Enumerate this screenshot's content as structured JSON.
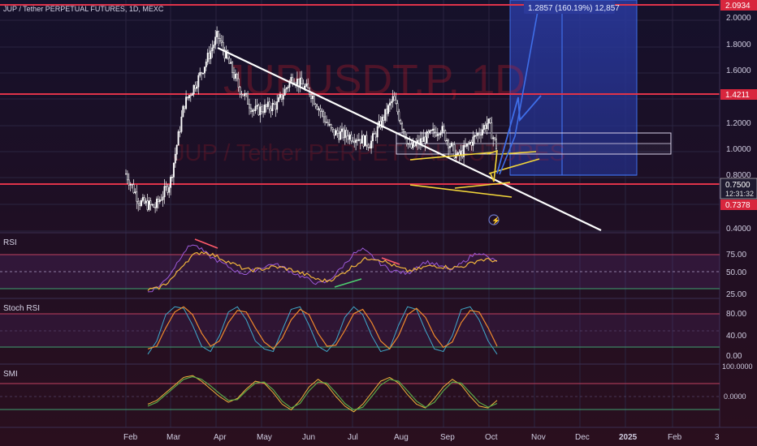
{
  "header": {
    "symbol_title": "JUP / Tether PERPETUAL FUTURES, 1D, MEXC",
    "watermark_ticker": "JUPUSDT.P, 1D",
    "watermark_sub": "JUP / Tether PERPETUAL FUTURES"
  },
  "measure_label": "1.2857 (160.19%) 12,857",
  "price_axis": {
    "ticks": [
      "2.0000",
      "1.8000",
      "1.6000",
      "1.2000",
      "1.0000",
      "0.8000",
      "0.4000"
    ],
    "badges": {
      "top_line": "2.0934",
      "mid_line": "1.4211",
      "current_price": "0.7500",
      "countdown": "12:31:32",
      "support_line": "0.7378"
    }
  },
  "indicators": {
    "rsi": {
      "label": "RSI",
      "ticks": [
        "75.00",
        "50.00",
        "25.00"
      ]
    },
    "stoch_rsi": {
      "label": "Stoch RSI",
      "ticks": [
        "80.00",
        "40.00",
        "0.00"
      ]
    },
    "smi": {
      "label": "SMI",
      "ticks": [
        "100.0000",
        "0.0000"
      ]
    }
  },
  "time_axis": [
    "Feb",
    "Mar",
    "Apr",
    "May",
    "Jun",
    "Jul",
    "Aug",
    "Sep",
    "Oct",
    "Nov",
    "Dec",
    "2025",
    "Feb",
    "3"
  ],
  "colors": {
    "hline": "#e0334a",
    "trendline": "#ffffff",
    "wedge": "#f4d73a",
    "projection": "#3f6ee8",
    "rsi_line": "#9b59d8",
    "rsi_ma": "#f0b43c",
    "stoch_k": "#3fa7c8",
    "stoch_d": "#f08a2c",
    "smi_a": "#f0b43c",
    "smi_b": "#59a848"
  },
  "chart_data": [
    {
      "type": "candlestick",
      "title": "JUP / Tether PERPETUAL FUTURES, 1D, MEXC",
      "y_scale": "log",
      "x_range": [
        "2024-02-01",
        "2025-03"
      ],
      "horizontal_levels": [
        2.0934,
        1.4211,
        0.7378
      ],
      "current_price": 0.75,
      "close_approx": [
        {
          "date": "2024-02-01",
          "close": 0.62
        },
        {
          "date": "2024-02-10",
          "close": 0.5
        },
        {
          "date": "2024-02-20",
          "close": 0.48
        },
        {
          "date": "2024-03-01",
          "close": 0.58
        },
        {
          "date": "2024-03-10",
          "close": 1.05
        },
        {
          "date": "2024-03-20",
          "close": 1.3
        },
        {
          "date": "2024-04-01",
          "close": 1.78
        },
        {
          "date": "2024-04-15",
          "close": 1.2
        },
        {
          "date": "2024-04-25",
          "close": 1.0
        },
        {
          "date": "2024-05-10",
          "close": 1.05
        },
        {
          "date": "2024-05-20",
          "close": 1.3
        },
        {
          "date": "2024-06-01",
          "close": 1.15
        },
        {
          "date": "2024-06-15",
          "close": 0.85
        },
        {
          "date": "2024-07-01",
          "close": 0.82
        },
        {
          "date": "2024-07-10",
          "close": 0.78
        },
        {
          "date": "2024-07-25",
          "close": 1.1
        },
        {
          "date": "2024-08-05",
          "close": 0.75
        },
        {
          "date": "2024-08-25",
          "close": 0.88
        },
        {
          "date": "2024-09-05",
          "close": 0.7
        },
        {
          "date": "2024-09-25",
          "close": 0.92
        },
        {
          "date": "2024-10-01",
          "close": 0.75
        }
      ]
    },
    {
      "type": "line",
      "title": "RSI",
      "ylim": [
        25,
        85
      ],
      "series": [
        {
          "values": [
            30,
            34,
            42,
            55,
            70,
            78,
            72,
            65,
            60,
            55,
            50,
            48,
            52,
            55,
            58,
            55,
            50,
            46,
            42,
            38,
            40,
            48,
            58,
            68,
            72,
            66,
            58,
            52,
            50,
            48,
            55,
            60,
            58,
            54,
            52,
            58,
            65,
            70,
            64,
            60
          ]
        },
        {
          "values": [
            32,
            33,
            38,
            46,
            58,
            66,
            70,
            68,
            64,
            60,
            56,
            52,
            52,
            53,
            55,
            54,
            52,
            49,
            46,
            42,
            41,
            44,
            50,
            56,
            62,
            64,
            62,
            58,
            54,
            51,
            52,
            55,
            56,
            55,
            54,
            55,
            58,
            62,
            62,
            61
          ]
        }
      ]
    },
    {
      "type": "line",
      "title": "Stoch RSI",
      "ylim": [
        0,
        100
      ],
      "series": [
        {
          "values": [
            5,
            30,
            80,
            95,
            92,
            60,
            20,
            10,
            40,
            85,
            95,
            70,
            30,
            15,
            10,
            50,
            90,
            95,
            60,
            20,
            10,
            30,
            75,
            95,
            80,
            40,
            10,
            15,
            60,
            95,
            90,
            50,
            15,
            10,
            40,
            90,
            95,
            70,
            30,
            5
          ]
        },
        {
          "values": [
            15,
            20,
            55,
            85,
            95,
            80,
            45,
            20,
            30,
            65,
            88,
            85,
            55,
            28,
            15,
            35,
            70,
            90,
            80,
            45,
            20,
            22,
            50,
            82,
            90,
            65,
            30,
            15,
            40,
            80,
            92,
            75,
            40,
            18,
            28,
            65,
            88,
            85,
            55,
            20
          ]
        }
      ]
    },
    {
      "type": "line",
      "title": "SMI",
      "series": [
        {
          "values": [
            -20,
            -10,
            10,
            30,
            50,
            55,
            40,
            20,
            0,
            -15,
            -5,
            20,
            40,
            35,
            10,
            -20,
            -35,
            -10,
            25,
            45,
            30,
            0,
            -25,
            -40,
            -20,
            10,
            40,
            50,
            35,
            5,
            -20,
            -30,
            -5,
            25,
            45,
            30,
            0,
            -25,
            -30,
            -10
          ]
        },
        {
          "values": [
            -25,
            -15,
            5,
            25,
            45,
            52,
            45,
            28,
            8,
            -10,
            -8,
            15,
            35,
            38,
            18,
            -12,
            -30,
            -18,
            15,
            38,
            35,
            10,
            -18,
            -35,
            -28,
            0,
            30,
            45,
            40,
            15,
            -12,
            -28,
            -15,
            15,
            38,
            35,
            10,
            -15,
            -28,
            -18
          ]
        }
      ]
    }
  ]
}
